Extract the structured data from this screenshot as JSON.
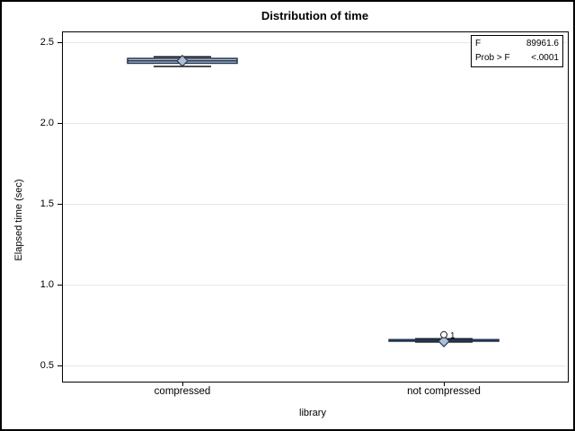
{
  "chart_data": {
    "type": "boxplot",
    "title": "Distribution of time",
    "xlabel": "library",
    "ylabel": "Elapsed time (sec)",
    "categories": [
      "compressed",
      "not compressed"
    ],
    "y_ticks": [
      {
        "value": 2.5,
        "label": "2.5"
      },
      {
        "value": 2.0,
        "label": "2.0"
      },
      {
        "value": 1.5,
        "label": "1.5"
      },
      {
        "value": 1.0,
        "label": "1.0"
      },
      {
        "value": 0.5,
        "label": "0.5"
      }
    ],
    "ylim": [
      0.4,
      2.567
    ],
    "grid": "horizontal-major",
    "series": [
      {
        "category": "compressed",
        "whisker_low": 2.35,
        "q1": 2.37,
        "median": 2.385,
        "q3": 2.4,
        "whisker_high": 2.41,
        "mean": 2.385,
        "outliers": []
      },
      {
        "category": "not compressed",
        "whisker_low": 0.645,
        "q1": 0.65,
        "median": 0.655,
        "q3": 0.66,
        "whisker_high": 0.665,
        "mean": 0.65,
        "outliers": [
          {
            "value": 0.69,
            "label": "1"
          }
        ]
      }
    ],
    "stats_table": {
      "rows": [
        {
          "label": "F",
          "value": "89961.6"
        },
        {
          "label": "Prob > F",
          "value": "<.0001"
        }
      ]
    },
    "colors": {
      "box_fill": "#aebfd3",
      "box_border": "#243750",
      "whisker": "#111111",
      "gridline": "#e7e7e7",
      "axis": "#000000",
      "outlier_stroke": "#222222"
    }
  }
}
